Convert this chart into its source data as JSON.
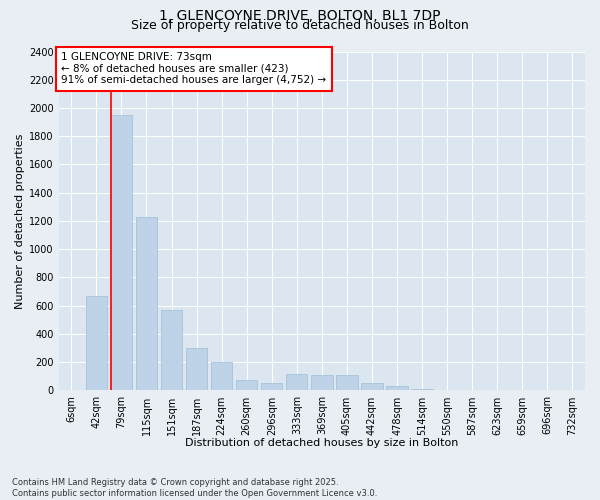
{
  "title_line1": "1, GLENCOYNE DRIVE, BOLTON, BL1 7DP",
  "title_line2": "Size of property relative to detached houses in Bolton",
  "xlabel": "Distribution of detached houses by size in Bolton",
  "ylabel": "Number of detached properties",
  "categories": [
    "6sqm",
    "42sqm",
    "79sqm",
    "115sqm",
    "151sqm",
    "187sqm",
    "224sqm",
    "260sqm",
    "296sqm",
    "333sqm",
    "369sqm",
    "405sqm",
    "442sqm",
    "478sqm",
    "514sqm",
    "550sqm",
    "587sqm",
    "623sqm",
    "659sqm",
    "696sqm",
    "732sqm"
  ],
  "values": [
    5,
    668,
    1950,
    1230,
    570,
    300,
    200,
    75,
    50,
    120,
    110,
    110,
    55,
    30,
    10,
    5,
    2,
    1,
    0,
    0,
    0
  ],
  "bar_color": "#bed3e8",
  "bar_edge_color": "#9fbdd4",
  "ylim": [
    0,
    2400
  ],
  "yticks": [
    0,
    200,
    400,
    600,
    800,
    1000,
    1200,
    1400,
    1600,
    1800,
    2000,
    2200,
    2400
  ],
  "background_color": "#e8eef4",
  "plot_background": "#dce6f0",
  "grid_color": "#ffffff",
  "title_fontsize": 10,
  "subtitle_fontsize": 9,
  "axis_label_fontsize": 8,
  "tick_fontsize": 7,
  "annotation_fontsize": 7.5,
  "annotation_box_text": "1 GLENCOYNE DRIVE: 73sqm\n← 8% of detached houses are smaller (423)\n91% of semi-detached houses are larger (4,752) →",
  "footer_text": "Contains HM Land Registry data © Crown copyright and database right 2025.\nContains public sector information licensed under the Open Government Licence v3.0.",
  "red_line_x": 1.57,
  "property_bin_index": 1
}
